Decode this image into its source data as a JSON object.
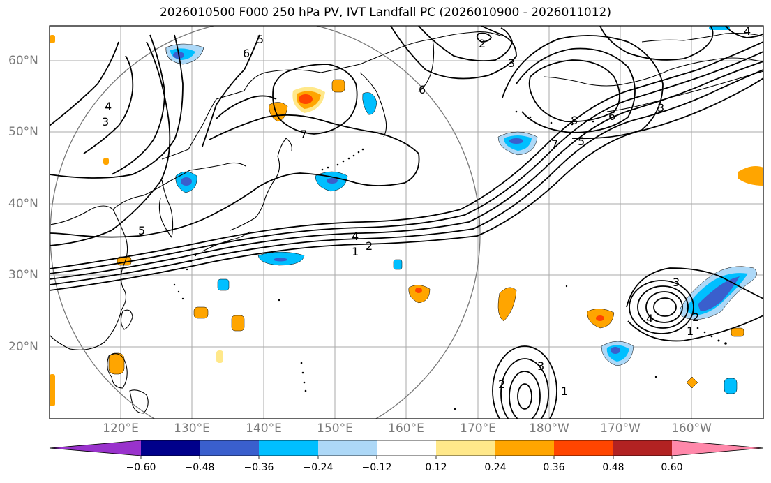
{
  "title": "2026010500 F000 250 hPa PV, IVT Landfall PC (2026010900 - 2026011012)",
  "lat_labels": [
    "60°N",
    "50°N",
    "40°N",
    "30°N",
    "20°N"
  ],
  "lon_labels": [
    "120°E",
    "130°E",
    "140°E",
    "150°E",
    "160°E",
    "170°E",
    "180°W",
    "170°W",
    "160°W"
  ],
  "contour_labels": [
    "5",
    "6",
    "4",
    "3",
    "7",
    "5",
    "1",
    "2",
    "4",
    "2",
    "3",
    "7",
    "5",
    "6",
    "8",
    "3",
    "4",
    "3",
    "4",
    "2",
    "1",
    "3",
    "2",
    "1",
    "6"
  ],
  "colorbar": {
    "ticks": [
      "−0.60",
      "−0.48",
      "−0.36",
      "−0.24",
      "−0.12",
      "0.12",
      "0.24",
      "0.36",
      "0.48",
      "0.60"
    ],
    "colors": [
      "#9932cc",
      "#00008b",
      "#3a5fcd",
      "#00bfff",
      "#add8f7",
      "#ffffff",
      "#ffe88a",
      "#ffa500",
      "#ff4500",
      "#b22222",
      "#ff88aa"
    ]
  }
}
